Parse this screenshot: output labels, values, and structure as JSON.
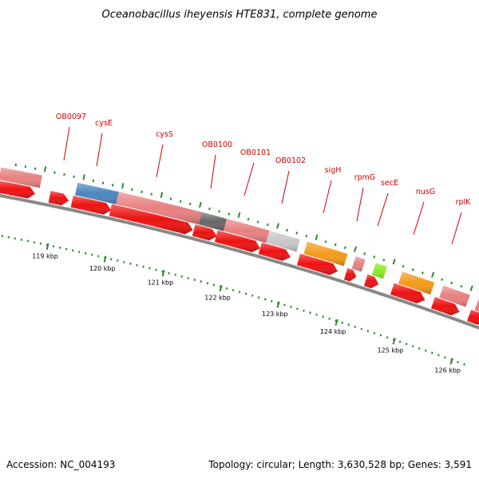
{
  "title": "Oceanobacillus iheyensis HTE831, complete genome",
  "footer": {
    "accession": "Accession: NC_004193",
    "summary": "Topology: circular; Length: 3,630,528 bp; Genes: 3,591"
  },
  "colors": {
    "cds_red": "#ee1111",
    "gene_pink": "#e88080",
    "gene_blue": "#4a86c0",
    "gene_dark": "#666666",
    "gene_grey": "#c8c8c8",
    "gene_orange": "#f59a1a",
    "gene_green": "#88ee22",
    "backbone": "#888888",
    "tick_green": "#2a8a2a",
    "label_red": "#cc0000"
  },
  "scale_labels": [
    "119 kbp",
    "120 kbp",
    "121 kbp",
    "122 kbp",
    "123 kbp",
    "124 kbp",
    "125 kbp",
    "126 kbp"
  ],
  "gene_labels": [
    "OB0097",
    "cysE",
    "cysS",
    "OB0100",
    "OB0101",
    "OB0102",
    "sigH",
    "rpmG",
    "secE",
    "nusG",
    "rplK"
  ]
}
